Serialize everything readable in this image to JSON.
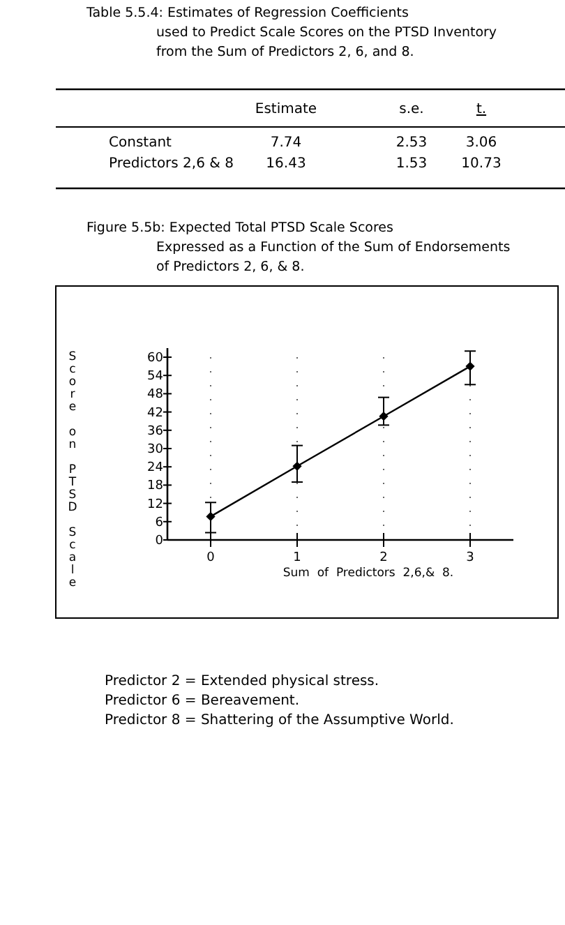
{
  "chart_data": [
    {
      "type": "other",
      "title": "Table 5.5.4: Estimates of Regression Coefficients used to Predict Scale Scores on the PTSD Inventory from the Sum of Predictors 2, 6, and 8.",
      "annotations": [
        "Estimate",
        "s.e.",
        "t.",
        "Constant",
        "7.74",
        "2.53",
        "3.06",
        "Predictors 2,6 & 8",
        "16.43",
        "1.53",
        "10.73"
      ]
    },
    {
      "type": "line",
      "title": "Figure 5.5b: Expected Total PTSD Scale Scores Expressed as a Function of the Sum of Endorsements of Predictors 2, 6, & 8.",
      "xlabel": "Sum  of  Predictors  2,6,&  8.",
      "ylabel": "Score on PTSD Scale",
      "x": [
        0,
        1,
        2,
        3
      ],
      "series": [
        {
          "color": "#000000",
          "values": [
            7.7,
            24.2,
            40.6,
            57.0
          ],
          "errors": [
            [
              2.4,
              12.3
            ],
            [
              19,
              31
            ],
            [
              37.7,
              46.8
            ],
            [
              51,
              62
            ]
          ]
        }
      ],
      "xlim": [
        -0.5,
        3.5
      ],
      "xticks": [
        0,
        1,
        2,
        3
      ],
      "ylim": [
        0,
        63
      ],
      "yticks": [
        0,
        6,
        12,
        18,
        24,
        30,
        36,
        42,
        48,
        54,
        60
      ],
      "grid": "x",
      "marker": "diamond",
      "line_style": "solid",
      "annotations": [
        "Predictor 2 = Extended physical stress.",
        "Predictor 6 = Bereavement.",
        "Predictor 8 = Shattering of the Assumptive World."
      ]
    }
  ]
}
